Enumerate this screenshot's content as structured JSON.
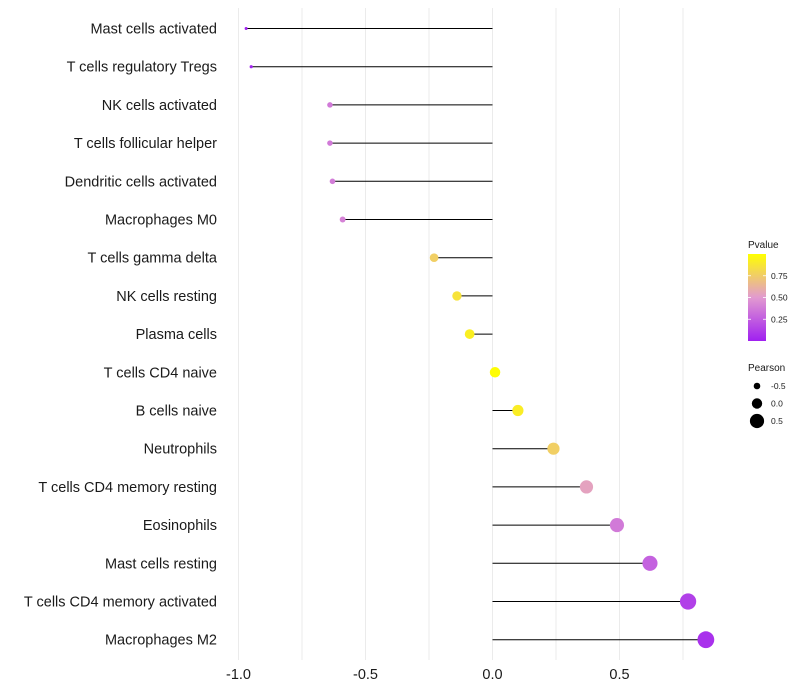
{
  "chart_data": {
    "type": "lollipop",
    "categories": [
      "Mast cells activated",
      "T cells regulatory  Tregs",
      "NK cells activated",
      "T cells follicular helper",
      "Dendritic cells activated",
      "Macrophages M0",
      "T cells gamma delta",
      "NK cells resting",
      "Plasma cells",
      "T cells CD4 naive",
      "B cells naive",
      "Neutrophils",
      "T cells CD4 memory resting",
      "Eosinophils",
      "Mast cells resting",
      "T cells CD4 memory activated",
      "Macrophages M2"
    ],
    "values": [
      -0.97,
      -0.95,
      -0.64,
      -0.64,
      -0.63,
      -0.59,
      -0.23,
      -0.14,
      -0.09,
      0.01,
      0.1,
      0.24,
      0.37,
      0.49,
      0.62,
      0.77,
      0.84
    ],
    "pvalues": [
      0.0,
      0.02,
      0.37,
      0.37,
      0.38,
      0.4,
      0.76,
      0.86,
      0.92,
      0.99,
      0.91,
      0.76,
      0.54,
      0.37,
      0.27,
      0.13,
      0.07
    ],
    "xlabel": "",
    "ylabel": "",
    "xlim": [
      -1.0,
      0.9
    ],
    "xticks": [
      "-1.0",
      "-0.5",
      "0.0",
      "0.5"
    ],
    "xtick_values": [
      -1.0,
      -0.5,
      0.0,
      0.5
    ],
    "grid": true,
    "legend": {
      "color_title": "Pvalue",
      "color_ticks": [
        "0.75",
        "0.50",
        "0.25"
      ],
      "color_tick_values": [
        0.75,
        0.5,
        0.25
      ],
      "color_range": [
        0.0,
        1.0
      ],
      "color_low": "#a020f0",
      "color_high": "#ffff00",
      "size_title": "Pearson",
      "size_ticks": [
        "-0.5",
        "0.0",
        "0.5"
      ],
      "size_tick_values": [
        -0.5,
        0.0,
        0.5
      ],
      "placement": "right"
    },
    "colors": {
      "stem": "#000000",
      "grid": "#ebebeb"
    }
  }
}
